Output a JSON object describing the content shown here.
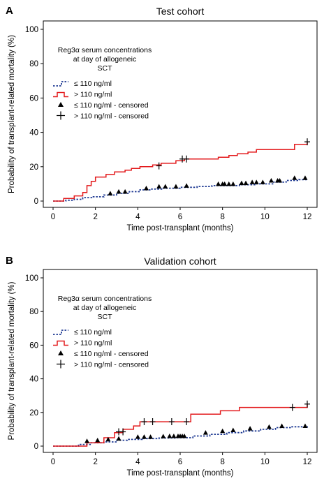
{
  "colors": {
    "low": "#1f3a93",
    "high": "#e31a1c",
    "censor": "#000000",
    "axis": "#000000"
  },
  "chart_data": [
    {
      "type": "line",
      "panel_letter": "A",
      "title": "Test cohort",
      "xlabel": "Time post-transplant (months)",
      "ylabel": "Probability of transplant-related mortality (%)",
      "xlim": [
        0,
        12
      ],
      "ylim": [
        0,
        100
      ],
      "x_ticks": [
        "0",
        "2",
        "4",
        "6",
        "8",
        "10",
        "12"
      ],
      "y_ticks": [
        "0",
        "20",
        "40",
        "60",
        "80",
        "100"
      ],
      "legend": {
        "heading": [
          "Reg3α serum concentrations",
          "at day of allogeneic",
          "SCT"
        ],
        "entries": [
          "≤ 110 ng/ml",
          "> 110 ng/ml",
          "≤ 110 ng/ml - censored",
          "> 110 ng/ml - censored"
        ]
      },
      "series": [
        {
          "name": "≤ 110 ng/ml",
          "x": [
            0,
            0.6,
            1.0,
            1.4,
            1.9,
            2.4,
            3.0,
            3.6,
            4.1,
            4.6,
            5.2,
            6.0,
            6.8,
            7.5,
            8.0,
            8.8,
            9.6,
            10.4,
            11.0,
            11.6,
            12.0
          ],
          "y": [
            0,
            0.5,
            1.0,
            2.0,
            2.5,
            3.5,
            4.5,
            5.5,
            6.5,
            7.0,
            7.5,
            8.0,
            8.5,
            9.0,
            9.0,
            9.5,
            10.0,
            11.0,
            12.0,
            12.5,
            12.5
          ]
        },
        {
          "name": "> 110 ng/ml",
          "x": [
            0,
            0.5,
            1.0,
            1.4,
            1.6,
            1.8,
            2.0,
            2.5,
            2.9,
            3.4,
            3.7,
            4.1,
            4.7,
            5.1,
            5.8,
            6.2,
            7.0,
            7.8,
            8.3,
            8.7,
            9.2,
            9.6,
            11.0,
            11.4,
            12.0
          ],
          "y": [
            0,
            1.5,
            3.0,
            5.0,
            9.0,
            11.5,
            14.0,
            15.5,
            17.0,
            18.0,
            19.0,
            20.0,
            21.0,
            22.0,
            23.5,
            24.5,
            24.5,
            25.5,
            26.5,
            27.5,
            28.5,
            30.0,
            30.0,
            33.0,
            34.5
          ]
        }
      ],
      "censored": [
        {
          "series": "≤ 110 ng/ml",
          "x": [
            2.7,
            3.1,
            3.4,
            4.4,
            5.0,
            5.3,
            5.8,
            6.3,
            7.8,
            8.0,
            8.1,
            8.3,
            8.5,
            8.9,
            9.1,
            9.4,
            9.6,
            9.9,
            10.3,
            10.6,
            10.7,
            11.4,
            11.9
          ],
          "y": [
            3.5,
            4.5,
            4.5,
            6.5,
            7.5,
            7.5,
            7.5,
            8.0,
            9.0,
            9.0,
            9.0,
            9.0,
            9.0,
            9.5,
            9.5,
            10.0,
            10.0,
            10.0,
            11.0,
            11.0,
            11.0,
            12.5,
            12.5
          ]
        },
        {
          "series": "> 110 ng/ml",
          "x": [
            5.0,
            6.1,
            6.3,
            12.0
          ],
          "y": [
            20.5,
            24.5,
            24.5,
            34.5
          ]
        }
      ]
    },
    {
      "type": "line",
      "panel_letter": "B",
      "title": "Validation cohort",
      "xlabel": "Time post-transplant (months)",
      "ylabel": "Probability of transplant-related mortality (%)",
      "xlim": [
        0,
        12
      ],
      "ylim": [
        0,
        100
      ],
      "x_ticks": [
        "0",
        "2",
        "4",
        "6",
        "8",
        "10",
        "12"
      ],
      "y_ticks": [
        "0",
        "20",
        "40",
        "60",
        "80",
        "100"
      ],
      "legend": {
        "heading": [
          "Reg3α serum concentrations",
          "at day of allogeneic",
          "SCT"
        ],
        "entries": [
          "≤ 110 ng/ml",
          "> 110 ng/ml",
          "≤ 110 ng/ml - censored",
          "> 110 ng/ml - censored"
        ]
      },
      "series": [
        {
          "name": "≤ 110 ng/ml",
          "x": [
            0,
            1.2,
            1.8,
            2.4,
            3.0,
            3.5,
            4.2,
            5.0,
            5.8,
            6.6,
            7.4,
            8.2,
            9.0,
            9.8,
            10.5,
            11.2,
            12.0
          ],
          "y": [
            0,
            1.0,
            2.0,
            2.5,
            3.5,
            4.0,
            4.5,
            4.8,
            5.0,
            6.0,
            7.0,
            8.0,
            9.0,
            10.0,
            11.0,
            11.5,
            11.0
          ]
        },
        {
          "name": "> 110 ng/ml",
          "x": [
            0,
            1.6,
            2.4,
            2.9,
            3.3,
            3.8,
            4.1,
            6.3,
            6.5,
            7.9,
            8.8,
            11.3,
            12.0
          ],
          "y": [
            0,
            2.0,
            5.0,
            8.0,
            10.0,
            12.0,
            14.5,
            14.5,
            19.0,
            21.0,
            23.0,
            23.0,
            25.0
          ]
        }
      ],
      "censored": [
        {
          "series": "≤ 110 ng/ml",
          "x": [
            1.6,
            2.1,
            2.6,
            3.1,
            4.0,
            4.3,
            4.6,
            5.2,
            5.5,
            5.7,
            5.9,
            6.0,
            6.1,
            6.2,
            7.2,
            8.0,
            8.5,
            9.3,
            10.2,
            10.8,
            11.9
          ],
          "y": [
            2.0,
            2.5,
            3.0,
            3.5,
            4.5,
            4.5,
            4.5,
            4.8,
            5.0,
            5.0,
            5.0,
            5.0,
            5.0,
            5.0,
            7.0,
            8.0,
            8.5,
            9.5,
            10.5,
            11.0,
            11.0
          ]
        },
        {
          "series": "> 110 ng/ml",
          "x": [
            3.1,
            3.3,
            4.3,
            4.7,
            5.6,
            6.3,
            11.3,
            12.0
          ],
          "y": [
            8.5,
            8.5,
            14.5,
            14.5,
            14.5,
            14.5,
            23.0,
            25.0
          ]
        }
      ]
    }
  ]
}
